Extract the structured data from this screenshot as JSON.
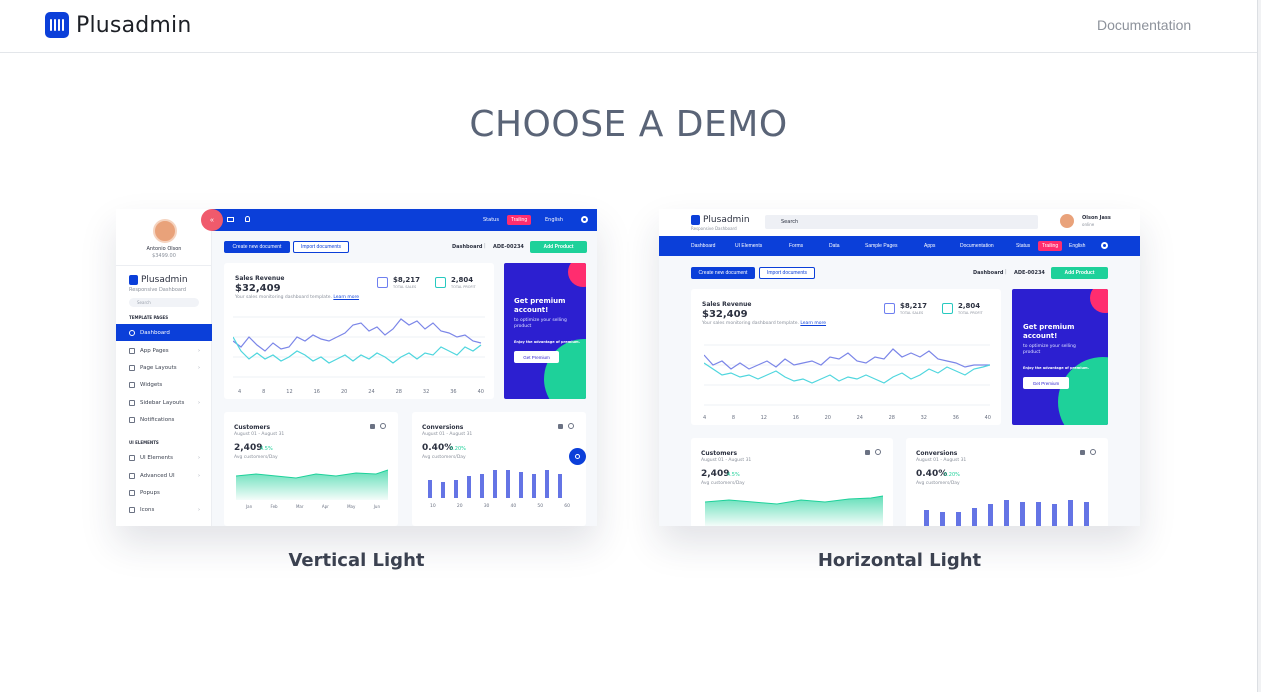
{
  "header": {
    "brand": "Plusadmin",
    "doc_link": "Documentation"
  },
  "heading": "CHOOSE A DEMO",
  "demos": [
    {
      "label": "Vertical Light",
      "preview": {
        "user_name": "Antonio Olson",
        "user_amount": "$3499.00",
        "brand": "Plusadmin",
        "brand_sub": "Responsive Dashboard",
        "search": "Search",
        "section_template": "TEMPLATE PAGES",
        "menu": [
          "Dashboard",
          "App Pages",
          "Page Layouts",
          "Widgets",
          "Sidebar Layouts",
          "Notifications"
        ],
        "section_ui": "UI ELEMENTS",
        "menu_ui": [
          "UI Elements",
          "Advanced UI",
          "Popups",
          "Icons"
        ],
        "status": "Status",
        "trending": "Trailing",
        "language": "English",
        "btn_create": "Create new document",
        "btn_import": "Import documents",
        "crumb": "Dashboard",
        "crumb_id": "ADE-00234",
        "btn_add": "Add Product",
        "sales_title": "Sales Revenue",
        "sales_value": "$32,409",
        "sales_sub": "Your sales monitoring dashboard template.",
        "learn_more": "Learn more",
        "stat1_value": "$8,217",
        "stat1_label": "TOTAL SALES",
        "stat2_value": "2,804",
        "stat2_label": "TOTAL PROFIT",
        "axis": [
          "4",
          "8",
          "12",
          "16",
          "20",
          "24",
          "28",
          "32",
          "36",
          "40"
        ],
        "promo_title": "Get premium account!",
        "promo_sub": "to optimize your selling product",
        "promo_small": "Enjoy the advantage of premium.",
        "promo_btn": "Get Premium",
        "customers_title": "Customers",
        "customers_range": "August 01 - August 31",
        "customers_value": "2,409",
        "customers_change": "4.5%",
        "customers_sub": "Avg customers/Day",
        "customers_axis": [
          "Jan",
          "Feb",
          "Mar",
          "Apr",
          "May",
          "Jun"
        ],
        "conv_title": "Conversions",
        "conv_range": "August 01 - August 31",
        "conv_value": "0.40%",
        "conv_change": "0.20%",
        "conv_sub": "Avg customers/Day",
        "conv_axis": [
          "10",
          "20",
          "30",
          "40",
          "50",
          "60"
        ]
      }
    },
    {
      "label": "Horizontal Light",
      "preview": {
        "brand": "Plusadmin",
        "brand_sub": "Responsive Dashboard",
        "search": "Search",
        "user_name": "Olson Jass",
        "user_status": "online",
        "nav": [
          "Dashboard",
          "UI Elements",
          "Forms",
          "Data",
          "Sample Pages",
          "Apps",
          "Documentation"
        ],
        "status": "Status",
        "trending": "Trailing",
        "language": "English",
        "btn_create": "Create new document",
        "btn_import": "Import documents",
        "crumb": "Dashboard",
        "crumb_id": "ADE-00234",
        "btn_add": "Add Product",
        "sales_title": "Sales Revenue",
        "sales_value": "$32,409",
        "sales_sub": "Your sales monitoring dashboard template.",
        "learn_more": "Learn more",
        "stat1_value": "$8,217",
        "stat1_label": "TOTAL SALES",
        "stat2_value": "2,804",
        "stat2_label": "TOTAL PROFIT",
        "axis": [
          "4",
          "8",
          "12",
          "16",
          "20",
          "24",
          "28",
          "32",
          "36",
          "40"
        ],
        "promo_title": "Get premium account!",
        "promo_sub": "to optimize your selling product",
        "promo_small": "Enjoy the advantage of premium.",
        "promo_btn": "Get Premium",
        "customers_title": "Customers",
        "customers_range": "August 01 - August 31",
        "customers_value": "2,409",
        "customers_change": "4.5%",
        "customers_sub": "Avg customers/Day",
        "conv_title": "Conversions",
        "conv_range": "August 01 - August 31",
        "conv_value": "0.40%",
        "conv_change": "0.20%",
        "conv_sub": "Avg customers/Day"
      }
    }
  ]
}
